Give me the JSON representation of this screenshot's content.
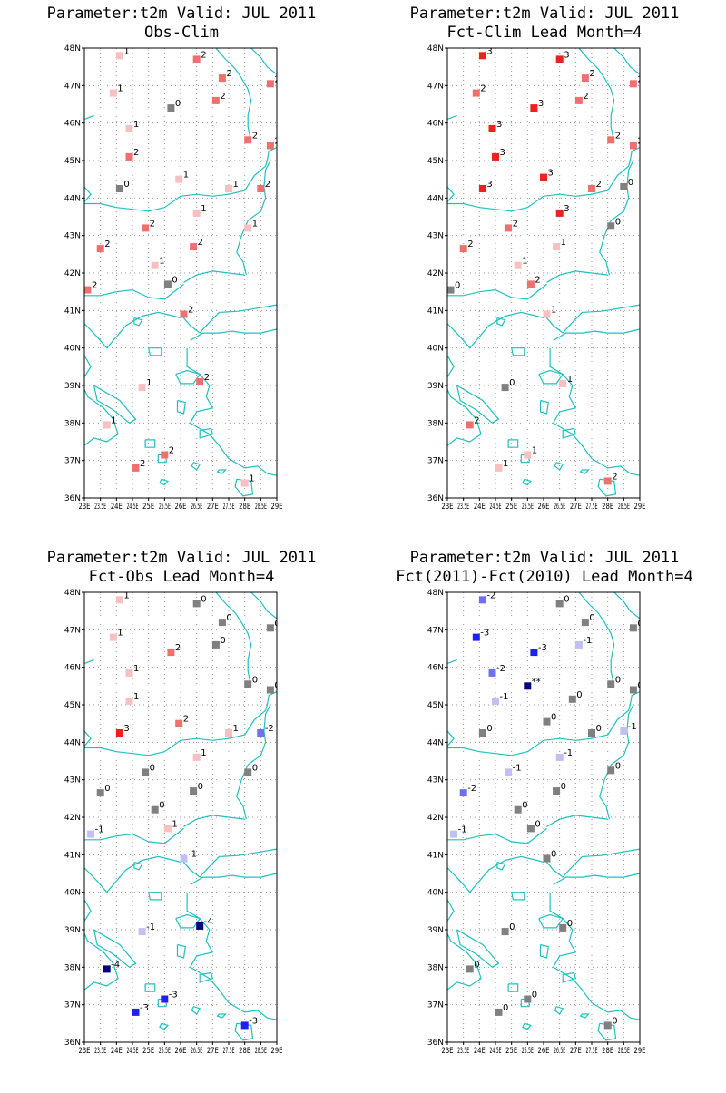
{
  "map": {
    "lat_ticks": [
      "48N",
      "47N",
      "46N",
      "45N",
      "44N",
      "43N",
      "42N",
      "41N",
      "40N",
      "39N",
      "38N",
      "37N",
      "36N"
    ],
    "lon_ticks": [
      "23E",
      "23.5E",
      "24E",
      "24.5E",
      "25E",
      "25.5E",
      "26E",
      "26.5E",
      "27E",
      "27.5E",
      "28E",
      "28.5E",
      "29E"
    ],
    "lon_range": [
      23,
      29
    ],
    "lat_range": [
      36,
      48
    ],
    "coast_color": "#20c0c0"
  },
  "color_scale": {
    "-4": "#000080",
    "-3": "#2020f0",
    "-2": "#7070ee",
    "-1": "#c0c0f4",
    "0": "#808080",
    "1": "#f8c0c0",
    "2": "#f07070",
    "3": "#f02020",
    "**": "#000080"
  },
  "panels": [
    {
      "title_line1": "Parameter:t2m Valid: JUL 2011",
      "title_line2": "Obs-Clim",
      "points": [
        {
          "lon": 24.1,
          "lat": 47.8,
          "label": "1"
        },
        {
          "lon": 26.5,
          "lat": 47.7,
          "label": "2"
        },
        {
          "lon": 27.3,
          "lat": 47.2,
          "label": "2"
        },
        {
          "lon": 28.8,
          "lat": 47.05,
          "label": "2"
        },
        {
          "lon": 23.9,
          "lat": 46.8,
          "label": "1"
        },
        {
          "lon": 27.1,
          "lat": 46.6,
          "label": "2"
        },
        {
          "lon": 25.7,
          "lat": 46.4,
          "label": "0"
        },
        {
          "lon": 24.4,
          "lat": 45.85,
          "label": "1"
        },
        {
          "lon": 28.1,
          "lat": 45.55,
          "label": "2"
        },
        {
          "lon": 28.8,
          "lat": 45.4,
          "label": "2"
        },
        {
          "lon": 24.4,
          "lat": 45.1,
          "label": "2"
        },
        {
          "lon": 25.95,
          "lat": 44.5,
          "label": "1"
        },
        {
          "lon": 27.5,
          "lat": 44.25,
          "label": "1"
        },
        {
          "lon": 28.5,
          "lat": 44.25,
          "label": "2"
        },
        {
          "lon": 24.1,
          "lat": 44.25,
          "label": "0"
        },
        {
          "lon": 26.5,
          "lat": 43.6,
          "label": "1"
        },
        {
          "lon": 24.9,
          "lat": 43.2,
          "label": "2"
        },
        {
          "lon": 28.1,
          "lat": 43.2,
          "label": "1"
        },
        {
          "lon": 23.5,
          "lat": 42.65,
          "label": "2"
        },
        {
          "lon": 26.4,
          "lat": 42.7,
          "label": "2"
        },
        {
          "lon": 25.2,
          "lat": 42.2,
          "label": "1"
        },
        {
          "lon": 25.6,
          "lat": 41.7,
          "label": "0"
        },
        {
          "lon": 23.1,
          "lat": 41.55,
          "label": "2"
        },
        {
          "lon": 26.1,
          "lat": 40.9,
          "label": "2"
        },
        {
          "lon": 24.8,
          "lat": 38.95,
          "label": "1"
        },
        {
          "lon": 26.6,
          "lat": 39.1,
          "label": "2"
        },
        {
          "lon": 23.7,
          "lat": 37.95,
          "label": "1"
        },
        {
          "lon": 25.5,
          "lat": 37.15,
          "label": "2"
        },
        {
          "lon": 24.6,
          "lat": 36.8,
          "label": "2"
        },
        {
          "lon": 28.0,
          "lat": 36.4,
          "label": "1"
        }
      ]
    },
    {
      "title_line1": "Parameter:t2m Valid: JUL 2011",
      "title_line2": "Fct-Clim Lead Month=4",
      "points": [
        {
          "lon": 24.1,
          "lat": 47.8,
          "label": "3"
        },
        {
          "lon": 26.5,
          "lat": 47.7,
          "label": "3"
        },
        {
          "lon": 27.3,
          "lat": 47.2,
          "label": "2"
        },
        {
          "lon": 28.8,
          "lat": 47.05,
          "label": "2"
        },
        {
          "lon": 23.9,
          "lat": 46.8,
          "label": "2"
        },
        {
          "lon": 27.1,
          "lat": 46.6,
          "label": "2"
        },
        {
          "lon": 25.7,
          "lat": 46.4,
          "label": "3"
        },
        {
          "lon": 24.4,
          "lat": 45.85,
          "label": "3"
        },
        {
          "lon": 28.1,
          "lat": 45.55,
          "label": "2"
        },
        {
          "lon": 28.8,
          "lat": 45.4,
          "label": "2"
        },
        {
          "lon": 24.5,
          "lat": 45.1,
          "label": "3"
        },
        {
          "lon": 26.0,
          "lat": 44.55,
          "label": "3"
        },
        {
          "lon": 27.5,
          "lat": 44.25,
          "label": "2"
        },
        {
          "lon": 28.5,
          "lat": 44.3,
          "label": "0"
        },
        {
          "lon": 24.1,
          "lat": 44.25,
          "label": "3"
        },
        {
          "lon": 26.5,
          "lat": 43.6,
          "label": "3"
        },
        {
          "lon": 24.9,
          "lat": 43.2,
          "label": "2"
        },
        {
          "lon": 28.1,
          "lat": 43.25,
          "label": "0"
        },
        {
          "lon": 23.5,
          "lat": 42.65,
          "label": "2"
        },
        {
          "lon": 26.4,
          "lat": 42.7,
          "label": "1"
        },
        {
          "lon": 25.2,
          "lat": 42.2,
          "label": "1"
        },
        {
          "lon": 25.6,
          "lat": 41.7,
          "label": "2"
        },
        {
          "lon": 23.1,
          "lat": 41.55,
          "label": "0"
        },
        {
          "lon": 26.1,
          "lat": 40.9,
          "label": "1"
        },
        {
          "lon": 24.8,
          "lat": 38.95,
          "label": "0"
        },
        {
          "lon": 26.6,
          "lat": 39.05,
          "label": "1"
        },
        {
          "lon": 23.7,
          "lat": 37.95,
          "label": "2"
        },
        {
          "lon": 25.5,
          "lat": 37.15,
          "label": "1"
        },
        {
          "lon": 24.6,
          "lat": 36.8,
          "label": "1"
        },
        {
          "lon": 28.0,
          "lat": 36.45,
          "label": "2"
        }
      ]
    },
    {
      "title_line1": "Parameter:t2m Valid: JUL 2011",
      "title_line2": "Fct-Obs Lead Month=4",
      "points": [
        {
          "lon": 24.1,
          "lat": 47.8,
          "label": "1"
        },
        {
          "lon": 26.5,
          "lat": 47.7,
          "label": "0"
        },
        {
          "lon": 27.3,
          "lat": 47.2,
          "label": "0"
        },
        {
          "lon": 28.8,
          "lat": 47.05,
          "label": "0"
        },
        {
          "lon": 23.9,
          "lat": 46.8,
          "label": "1"
        },
        {
          "lon": 27.1,
          "lat": 46.6,
          "label": "0"
        },
        {
          "lon": 25.7,
          "lat": 46.4,
          "label": "2"
        },
        {
          "lon": 24.4,
          "lat": 45.85,
          "label": "1"
        },
        {
          "lon": 28.1,
          "lat": 45.55,
          "label": "0"
        },
        {
          "lon": 28.8,
          "lat": 45.4,
          "label": "0"
        },
        {
          "lon": 24.4,
          "lat": 45.1,
          "label": "1"
        },
        {
          "lon": 25.95,
          "lat": 44.5,
          "label": "2"
        },
        {
          "lon": 27.5,
          "lat": 44.25,
          "label": "1"
        },
        {
          "lon": 28.5,
          "lat": 44.25,
          "label": "-2"
        },
        {
          "lon": 24.1,
          "lat": 44.25,
          "label": "3"
        },
        {
          "lon": 26.5,
          "lat": 43.6,
          "label": "1"
        },
        {
          "lon": 24.9,
          "lat": 43.2,
          "label": "0"
        },
        {
          "lon": 28.1,
          "lat": 43.2,
          "label": "0"
        },
        {
          "lon": 23.5,
          "lat": 42.65,
          "label": "0"
        },
        {
          "lon": 26.4,
          "lat": 42.7,
          "label": "0"
        },
        {
          "lon": 25.2,
          "lat": 42.2,
          "label": "0"
        },
        {
          "lon": 25.6,
          "lat": 41.7,
          "label": "1"
        },
        {
          "lon": 23.2,
          "lat": 41.55,
          "label": "-1"
        },
        {
          "lon": 26.1,
          "lat": 40.9,
          "label": "-1"
        },
        {
          "lon": 24.8,
          "lat": 38.95,
          "label": "-1"
        },
        {
          "lon": 26.6,
          "lat": 39.1,
          "label": "-4"
        },
        {
          "lon": 23.7,
          "lat": 37.95,
          "label": "-4"
        },
        {
          "lon": 25.5,
          "lat": 37.15,
          "label": "-3"
        },
        {
          "lon": 24.6,
          "lat": 36.8,
          "label": "-3"
        },
        {
          "lon": 28.0,
          "lat": 36.45,
          "label": "-3"
        }
      ]
    },
    {
      "title_line1": "Parameter:t2m Valid: JUL 2011",
      "title_line2": "Fct(2011)-Fct(2010) Lead Month=4",
      "points": [
        {
          "lon": 24.1,
          "lat": 47.8,
          "label": "-2"
        },
        {
          "lon": 26.5,
          "lat": 47.7,
          "label": "0"
        },
        {
          "lon": 27.3,
          "lat": 47.2,
          "label": "0"
        },
        {
          "lon": 28.8,
          "lat": 47.05,
          "label": "0"
        },
        {
          "lon": 23.9,
          "lat": 46.8,
          "label": "-3"
        },
        {
          "lon": 27.1,
          "lat": 46.6,
          "label": "-1"
        },
        {
          "lon": 25.7,
          "lat": 46.4,
          "label": "-3"
        },
        {
          "lon": 24.4,
          "lat": 45.85,
          "label": "-2"
        },
        {
          "lon": 28.1,
          "lat": 45.55,
          "label": "0"
        },
        {
          "lon": 28.8,
          "lat": 45.4,
          "label": "0"
        },
        {
          "lon": 24.5,
          "lat": 45.1,
          "label": "-1"
        },
        {
          "lon": 25.5,
          "lat": 45.5,
          "label": "**"
        },
        {
          "lon": 26.9,
          "lat": 45.15,
          "label": "0"
        },
        {
          "lon": 26.1,
          "lat": 44.55,
          "label": "0"
        },
        {
          "lon": 27.5,
          "lat": 44.25,
          "label": "0"
        },
        {
          "lon": 28.5,
          "lat": 44.3,
          "label": "-1"
        },
        {
          "lon": 24.1,
          "lat": 44.25,
          "label": "0"
        },
        {
          "lon": 26.5,
          "lat": 43.6,
          "label": "-1"
        },
        {
          "lon": 24.9,
          "lat": 43.2,
          "label": "-1"
        },
        {
          "lon": 28.1,
          "lat": 43.25,
          "label": "0"
        },
        {
          "lon": 23.5,
          "lat": 42.65,
          "label": "-2"
        },
        {
          "lon": 26.4,
          "lat": 42.7,
          "label": "0"
        },
        {
          "lon": 25.2,
          "lat": 42.2,
          "label": "0"
        },
        {
          "lon": 25.6,
          "lat": 41.7,
          "label": "0"
        },
        {
          "lon": 23.2,
          "lat": 41.55,
          "label": "-1"
        },
        {
          "lon": 26.1,
          "lat": 40.9,
          "label": "0"
        },
        {
          "lon": 24.8,
          "lat": 38.95,
          "label": "0"
        },
        {
          "lon": 26.6,
          "lat": 39.05,
          "label": "0"
        },
        {
          "lon": 23.7,
          "lat": 37.95,
          "label": "0"
        },
        {
          "lon": 25.5,
          "lat": 37.15,
          "label": "0"
        },
        {
          "lon": 24.6,
          "lat": 36.8,
          "label": "0"
        },
        {
          "lon": 28.0,
          "lat": 36.45,
          "label": "0"
        }
      ]
    }
  ]
}
